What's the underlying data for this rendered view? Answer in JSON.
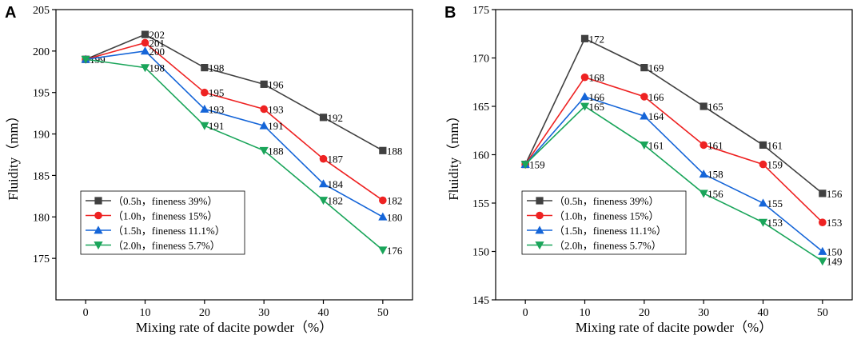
{
  "chart_data": [
    {
      "type": "line",
      "panel_label": "A",
      "xlabel": "Mixing rate of dacite powder（%）",
      "ylabel": "Fluidity（mm）",
      "x": [
        0,
        10,
        20,
        30,
        40,
        50
      ],
      "xticks": [
        "0",
        "10",
        "20",
        "30",
        "40",
        "50"
      ],
      "xlim": [
        -5,
        55
      ],
      "ylim": [
        170,
        205
      ],
      "yticks": [
        "175",
        "180",
        "185",
        "190",
        "195",
        "200",
        "205"
      ],
      "legend_position": "bottom-left",
      "series": [
        {
          "name": "（0.5h，fineness 39%）",
          "marker": "square",
          "color": "#404040",
          "values": [
            199,
            202,
            198,
            196,
            192,
            188
          ],
          "labels": [
            "199",
            "202",
            "198",
            "196",
            "192",
            "188"
          ]
        },
        {
          "name": "（1.0h，fineness 15%）",
          "marker": "circle",
          "color": "#ee2222",
          "values": [
            199,
            201,
            195,
            193,
            187,
            182
          ],
          "labels": [
            "",
            "201",
            "195",
            "193",
            "187",
            "182"
          ]
        },
        {
          "name": "（1.5h，fineness 11.1%）",
          "marker": "triangle-up",
          "color": "#1565d8",
          "values": [
            199,
            200,
            193,
            191,
            184,
            180
          ],
          "labels": [
            "",
            "200",
            "193",
            "191",
            "184",
            "180"
          ]
        },
        {
          "name": "（2.0h，fineness 5.7%）",
          "marker": "triangle-down",
          "color": "#1aa55a",
          "values": [
            199,
            198,
            191,
            188,
            182,
            176
          ],
          "labels": [
            "",
            "198",
            "191",
            "188",
            "182",
            "176"
          ]
        }
      ]
    },
    {
      "type": "line",
      "panel_label": "B",
      "xlabel": "Mixing rate of dacite powder（%）",
      "ylabel": "Fluidity（mm）",
      "x": [
        0,
        10,
        20,
        30,
        40,
        50
      ],
      "xticks": [
        "0",
        "10",
        "20",
        "30",
        "40",
        "50"
      ],
      "xlim": [
        -5,
        55
      ],
      "ylim": [
        145,
        175
      ],
      "yticks": [
        "145",
        "150",
        "155",
        "160",
        "165",
        "170",
        "175"
      ],
      "legend_position": "bottom-left",
      "series": [
        {
          "name": "（0.5h，fineness 39%）",
          "marker": "square",
          "color": "#404040",
          "values": [
            159,
            172,
            169,
            165,
            161,
            156
          ],
          "labels": [
            "159",
            "172",
            "169",
            "165",
            "161",
            "156"
          ]
        },
        {
          "name": "（1.0h，fineness 15%）",
          "marker": "circle",
          "color": "#ee2222",
          "values": [
            159,
            168,
            166,
            161,
            159,
            153
          ],
          "labels": [
            "",
            "168",
            "166",
            "161",
            "159",
            "153"
          ]
        },
        {
          "name": "（1.5h，fineness 11.1%）",
          "marker": "triangle-up",
          "color": "#1565d8",
          "values": [
            159,
            166,
            164,
            158,
            155,
            150
          ],
          "labels": [
            "",
            "166",
            "164",
            "158",
            "155",
            "150"
          ]
        },
        {
          "name": "（2.0h，fineness 5.7%）",
          "marker": "triangle-down",
          "color": "#1aa55a",
          "values": [
            159,
            165,
            161,
            156,
            153,
            149
          ],
          "labels": [
            "",
            "165",
            "161",
            "156",
            "153",
            "149"
          ]
        }
      ]
    }
  ]
}
